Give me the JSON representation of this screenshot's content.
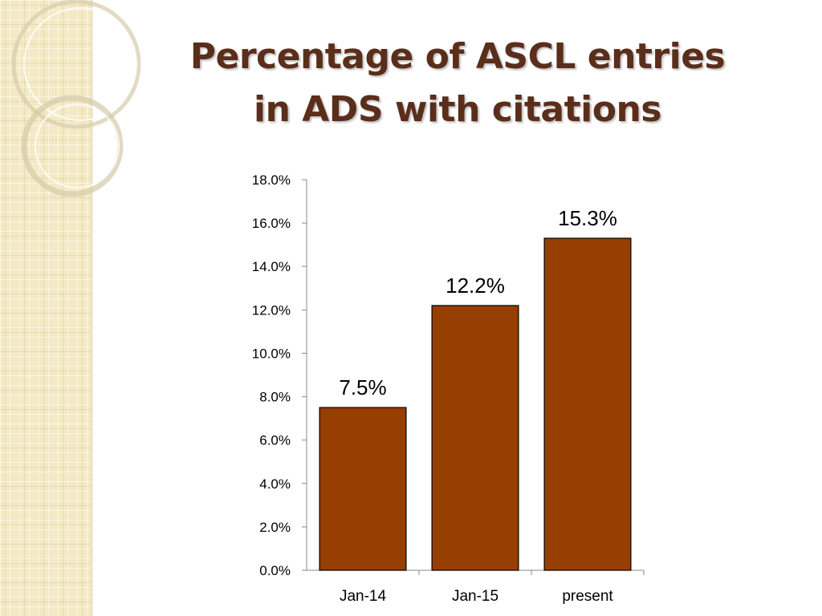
{
  "slide": {
    "title_line1": "Percentage of ASCL entries",
    "title_line2": "in ADS with citations"
  },
  "colors": {
    "bar": "#963f00",
    "bar_outline": "#000000",
    "title": "#5a2e1a",
    "axis": "#888888"
  },
  "chart_data": {
    "type": "bar",
    "title": "Percentage of ASCL entries in ADS with citations",
    "xlabel": "",
    "ylabel": "",
    "categories": [
      "Jan-14",
      "Jan-15",
      "present"
    ],
    "values": [
      7.5,
      12.2,
      15.3
    ],
    "data_labels": [
      "7.5%",
      "12.2%",
      "15.3%"
    ],
    "ylim": [
      0,
      18
    ],
    "yticks": [
      0,
      2,
      4,
      6,
      8,
      10,
      12,
      14,
      16,
      18
    ],
    "ytick_labels": [
      "0.0%",
      "2.0%",
      "4.0%",
      "6.0%",
      "8.0%",
      "10.0%",
      "12.0%",
      "14.0%",
      "16.0%",
      "18.0%"
    ],
    "grid": false,
    "legend": "none"
  }
}
